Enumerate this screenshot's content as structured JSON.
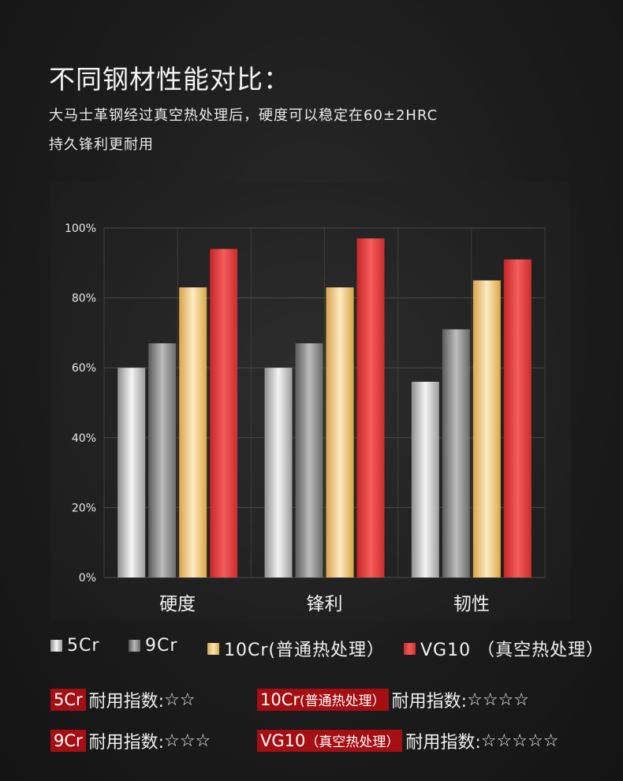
{
  "heading": {
    "title": "不同钢材性能对比：",
    "desc_line1": "大马士革钢经过真空热处理后，硬度可以稳定在60±2HRC",
    "desc_line2": "持久锋利更耐用"
  },
  "chart_data": {
    "type": "bar",
    "categories": [
      "硬度",
      "锋利",
      "韧性"
    ],
    "ylim": [
      0,
      100
    ],
    "ytick_labels": [
      "0%",
      "20%",
      "40%",
      "60%",
      "80%",
      "100%"
    ],
    "ytick_values": [
      0,
      20,
      40,
      60,
      80,
      100
    ],
    "grid": true,
    "legend_placement": "bottom",
    "series": [
      {
        "name": "5Cr",
        "values": [
          60,
          60,
          56
        ],
        "color": "#d9d9d9"
      },
      {
        "name": "9Cr",
        "values": [
          67,
          67,
          71
        ],
        "color": "#8a8a8a"
      },
      {
        "name": "10Cr(普通热处理）",
        "values": [
          83,
          83,
          85
        ],
        "color": "#f0c77a"
      },
      {
        "name": "VG10 （真空热处理）",
        "values": [
          94,
          97,
          91
        ],
        "color": "#e33b3b"
      }
    ]
  },
  "legend": {
    "items": [
      "5Cr",
      "9Cr",
      "10Cr(普通热处理）",
      "VG10 （真空热处理）"
    ]
  },
  "ratings": {
    "label": "耐用指数:",
    "items": [
      {
        "tag": "5Cr",
        "stars": "☆☆"
      },
      {
        "tag": "10Cr",
        "tag_suffix": "(普通热处理）",
        "stars": "☆☆☆☆"
      },
      {
        "tag": "9Cr",
        "stars": "☆☆☆"
      },
      {
        "tag": "VG10",
        "tag_suffix": "（真空热处理）",
        "stars": "☆☆☆☆☆"
      }
    ]
  }
}
